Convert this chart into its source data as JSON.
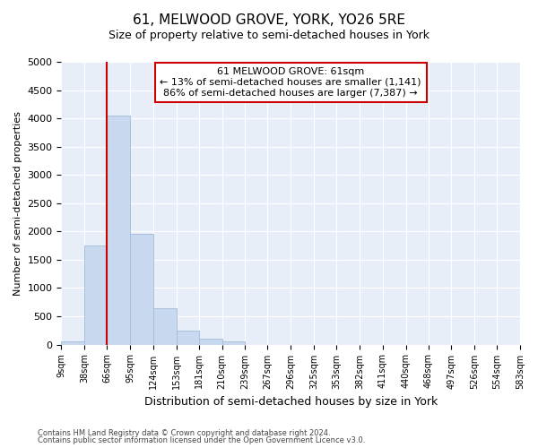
{
  "title": "61, MELWOOD GROVE, YORK, YO26 5RE",
  "subtitle": "Size of property relative to semi-detached houses in York",
  "xlabel": "Distribution of semi-detached houses by size in York",
  "ylabel": "Number of semi-detached properties",
  "footnote1": "Contains HM Land Registry data © Crown copyright and database right 2024.",
  "footnote2": "Contains public sector information licensed under the Open Government Licence v3.0.",
  "bins": [
    9,
    38,
    66,
    95,
    124,
    153,
    181,
    210,
    239,
    267,
    296,
    325,
    353,
    382,
    411,
    440,
    468,
    497,
    526,
    554,
    583
  ],
  "bar_heights": [
    60,
    1750,
    4050,
    1950,
    650,
    240,
    100,
    50,
    0,
    0,
    0,
    0,
    0,
    0,
    0,
    0,
    0,
    0,
    0,
    0
  ],
  "bar_color": "#c8d8ee",
  "bar_edge_color": "#a8c0dc",
  "ylim": [
    0,
    5000
  ],
  "yticks": [
    0,
    500,
    1000,
    1500,
    2000,
    2500,
    3000,
    3500,
    4000,
    4500,
    5000
  ],
  "property_label": "61 MELWOOD GROVE: 61sqm",
  "annotation_line1": "← 13% of semi-detached houses are smaller (1,141)",
  "annotation_line2": "86% of semi-detached houses are larger (7,387) →",
  "vline_color": "#cc0000",
  "vline_x": 66,
  "tick_labels": [
    "9sqm",
    "38sqm",
    "66sqm",
    "95sqm",
    "124sqm",
    "153sqm",
    "181sqm",
    "210sqm",
    "239sqm",
    "267sqm",
    "296sqm",
    "325sqm",
    "353sqm",
    "382sqm",
    "411sqm",
    "440sqm",
    "468sqm",
    "497sqm",
    "526sqm",
    "554sqm",
    "583sqm"
  ],
  "bg_color": "#e8eef8",
  "title_fontsize": 11,
  "subtitle_fontsize": 9
}
